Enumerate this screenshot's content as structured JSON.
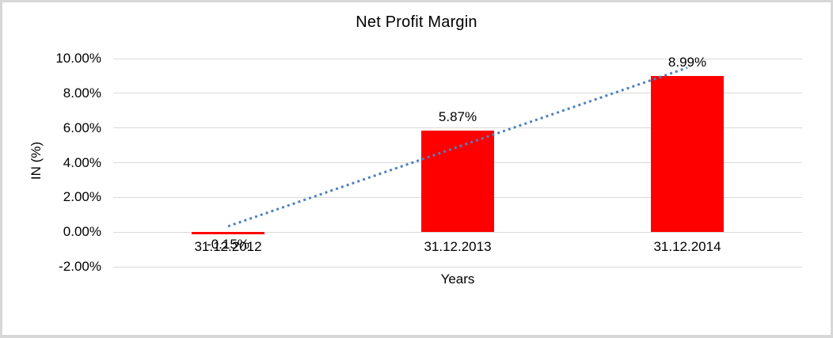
{
  "window": {
    "background": "#FFFFFF",
    "border_color": "#D7D7D7"
  },
  "chart_data": {
    "type": "bar",
    "title": "Net Profit Margin",
    "xlabel": "Years",
    "ylabel": "IN (%)",
    "categories": [
      "31.12.2012",
      "31.12.2013",
      "31.12.2014"
    ],
    "values": [
      -0.15,
      5.87,
      8.99
    ],
    "data_labels": [
      "-0.15%",
      "5.87%",
      "8.99%"
    ],
    "ylim": [
      -2,
      10
    ],
    "y_ticks": [
      {
        "value": -2,
        "label": "-2.00%"
      },
      {
        "value": 0,
        "label": "0.00%"
      },
      {
        "value": 2,
        "label": "2.00%"
      },
      {
        "value": 4,
        "label": "4.00%"
      },
      {
        "value": 6,
        "label": "6.00%"
      },
      {
        "value": 8,
        "label": "8.00%"
      },
      {
        "value": 10,
        "label": "10.00%"
      }
    ],
    "grid": true,
    "legend": "none",
    "bar_color": "#FF0000",
    "gridline_color": "#D9D9D9",
    "text_color": "#000000",
    "trendline": {
      "type": "linear",
      "style": "dotted",
      "color": "#4F81BD"
    }
  }
}
